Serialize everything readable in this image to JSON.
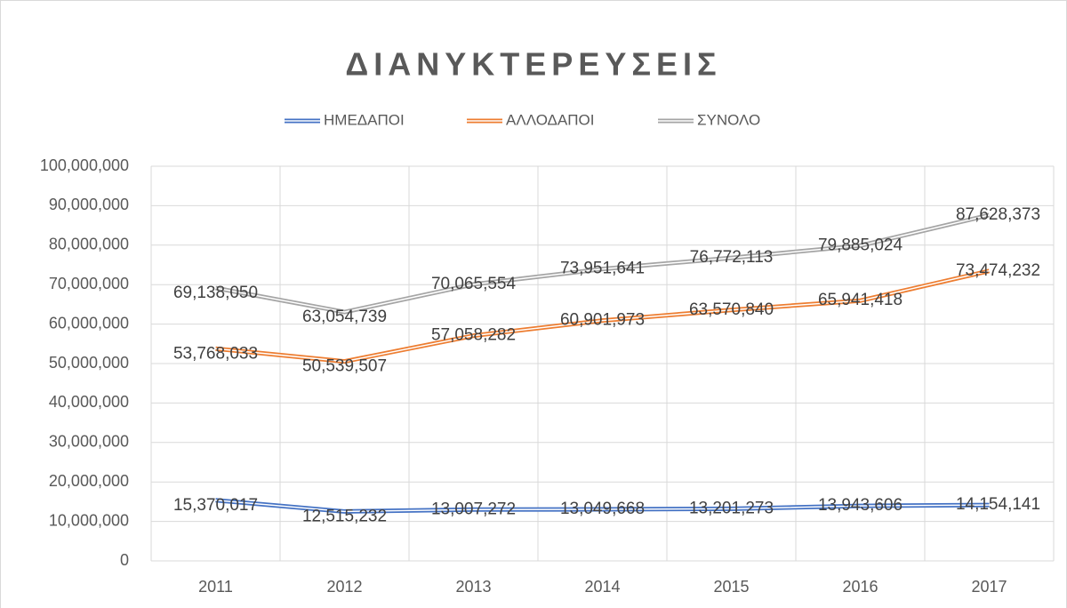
{
  "chart_data": {
    "type": "line",
    "title": "ΔΙΑΝΥΚΤΕΡΕΥΣΕΙΣ",
    "categories": [
      "2011",
      "2012",
      "2013",
      "2014",
      "2015",
      "2016",
      "2017"
    ],
    "series": [
      {
        "name": "ΗΜΕΔΑΠΟΙ",
        "color": "#4472c4",
        "values": [
          15370017,
          12515232,
          13007272,
          13049668,
          13201273,
          13943606,
          14154141
        ],
        "value_labels": [
          "15,370,017",
          "12,515,232",
          "13,007,272",
          "13,049,668",
          "13,201,273",
          "13,943,606",
          "14,154,141"
        ]
      },
      {
        "name": "ΑΛΛΟΔΑΠΟΙ",
        "color": "#ed7d31",
        "values": [
          53768033,
          50539507,
          57058282,
          60901973,
          63570840,
          65941418,
          73474232
        ],
        "value_labels": [
          "53,768,033",
          "50,539,507",
          "57,058,282",
          "60,901,973",
          "63,570,840",
          "65,941,418",
          "73,474,232"
        ]
      },
      {
        "name": "ΣΥΝΟΛΟ",
        "color": "#a5a5a5",
        "values": [
          69138050,
          63054739,
          70065554,
          73951641,
          76772113,
          79885024,
          87628373
        ],
        "value_labels": [
          "69,138,050",
          "63,054,739",
          "70,065,554",
          "73,951,641",
          "76,772,113",
          "79,885,024",
          "87,628,373"
        ]
      }
    ],
    "ylim": [
      0,
      100000000
    ],
    "yticks": [
      0,
      {
        "value": 10000000,
        "label": "10,000,000"
      },
      {
        "value": 20000000,
        "label": "20,000,000"
      },
      {
        "value": 30000000,
        "label": "30,000,000"
      },
      {
        "value": 40000000,
        "label": "40,000,000"
      },
      {
        "value": 50000000,
        "label": "50,000,000"
      },
      {
        "value": 60000000,
        "label": "60,000,000"
      },
      {
        "value": 70000000,
        "label": "70,000,000"
      },
      {
        "value": 80000000,
        "label": "80,000,000"
      },
      {
        "value": 90000000,
        "label": "90,000,000"
      },
      {
        "value": 100000000,
        "label": "100,000,000"
      }
    ],
    "grid": true,
    "legend": "top"
  }
}
